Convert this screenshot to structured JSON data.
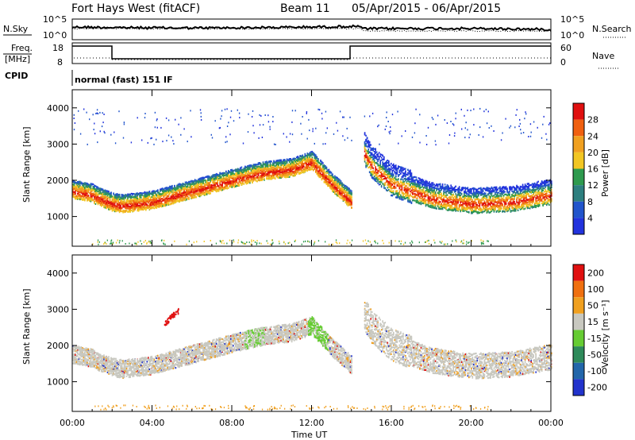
{
  "header": {
    "title": "Fort Hays West (fitACF)",
    "beam": "Beam 11",
    "dates": "05/Apr/2015 - 06/Apr/2015"
  },
  "noise_panel": {
    "left_label": "N.Sky",
    "right_label": "N.Search",
    "left_ticks": [
      "10^5",
      "10^0"
    ],
    "right_ticks": [
      "10^5",
      "10^0"
    ]
  },
  "freq_panel": {
    "left_label_1": "Freq.",
    "left_label_2": "[MHz]",
    "right_label": "Nave",
    "left_ticks": [
      "18",
      "8"
    ],
    "right_ticks": [
      "60",
      "0"
    ]
  },
  "cpid": {
    "label": "CPID",
    "text": "normal (fast) 151 IF"
  },
  "colors": {
    "power_scale": [
      "#2233dd",
      "#2255cc",
      "#2d7f7f",
      "#2e9a4e",
      "#f2c623",
      "#f0a020",
      "#f06010",
      "#e01010"
    ],
    "velocity_scale": [
      "#2233cc",
      "#2266aa",
      "#2e8a5a",
      "#66cc33",
      "#c8c8c0",
      "#f0a020",
      "#f07010",
      "#e01010"
    ]
  },
  "chart_data": [
    {
      "type": "heatmap",
      "name": "power",
      "ylabel": "Slant Range [km]",
      "xlabel": "",
      "x_ticks": [
        "00:00",
        "04:00",
        "08:00",
        "12:00",
        "16:00",
        "20:00",
        "00:00"
      ],
      "y_ticks": [
        "1000",
        "2000",
        "3000",
        "4000"
      ],
      "xlim": [
        0,
        24
      ],
      "ylim": [
        180,
        4500
      ],
      "colorbar": {
        "label": "Power [dB]",
        "ticks": [
          "4",
          "8",
          "12",
          "16",
          "20",
          "24",
          "28"
        ],
        "range": [
          0,
          30
        ]
      },
      "bands": [
        {
          "x": [
            0.0,
            1.0,
            1.1,
            2.0,
            2.5,
            4.0,
            6.0,
            8.0,
            9.5,
            11.0,
            12.0,
            13.0,
            14.0,
            14.6,
            15.0,
            16.0,
            18.0,
            20.0,
            22.0,
            24.0
          ],
          "y": [
            1700,
            1600,
            1550,
            1350,
            1300,
            1400,
            1700,
            2000,
            2200,
            2300,
            2500,
            1900,
            1400,
            2800,
            2400,
            1900,
            1500,
            1350,
            1400,
            1600
          ]
        }
      ],
      "x_range_empty": [
        14.0,
        14.6
      ]
    },
    {
      "type": "heatmap",
      "name": "velocity",
      "ylabel": "Slant Range [km]",
      "xlabel": "Time UT",
      "x_ticks": [
        "00:00",
        "04:00",
        "08:00",
        "12:00",
        "16:00",
        "20:00",
        "00:00"
      ],
      "y_ticks": [
        "1000",
        "2000",
        "3000",
        "4000"
      ],
      "xlim": [
        0,
        24
      ],
      "ylim": [
        180,
        4500
      ],
      "colorbar": {
        "label": "Velocity [m s⁻¹]",
        "ticks": [
          "200",
          "100",
          "50",
          "15",
          "-15",
          "-50",
          "-100",
          "-200"
        ]
      }
    }
  ]
}
